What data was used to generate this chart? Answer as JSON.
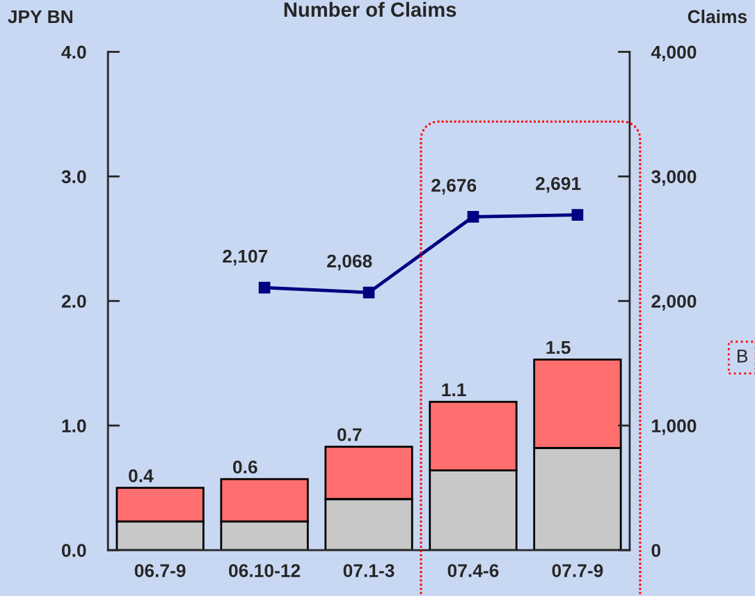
{
  "chart_data": {
    "type": "bar",
    "title": "Number of Claims",
    "ylabel": "JPY BN",
    "y2label": "Claims",
    "categories": [
      "06.7-9",
      "06.10-12",
      "07.1-3",
      "07.4-6",
      "07.7-9"
    ],
    "stacked": true,
    "series": [
      {
        "color": "#c8c8c8",
        "values": [
          0.23,
          0.23,
          0.41,
          0.64,
          0.82
        ]
      },
      {
        "color": "#ff6f6f",
        "values": [
          0.27,
          0.34,
          0.42,
          0.55,
          0.71
        ]
      },
      {
        "type": "line",
        "axis": "y2",
        "color": "#000080",
        "marker": "square",
        "values": [
          null,
          2107,
          2068,
          2676,
          2691
        ],
        "value_labels": [
          null,
          "2,107",
          "2,068",
          "2,676",
          "2,691"
        ]
      }
    ],
    "totals": [
      "0.4",
      "0.6",
      "0.7",
      "1.1",
      "1.5"
    ],
    "ylim": [
      0,
      4.0
    ],
    "yticks": [
      {
        "value": 0,
        "label": "0.0"
      },
      {
        "value": 1,
        "label": "1.0"
      },
      {
        "value": 2,
        "label": "2.0"
      },
      {
        "value": 3,
        "label": "3.0"
      },
      {
        "value": 4,
        "label": "4.0"
      }
    ],
    "y2lim": [
      0,
      4000
    ],
    "y2ticks": [
      0,
      {
        "value": 1000,
        "label": "1,000"
      },
      {
        "value": 2000,
        "label": "2,000"
      },
      {
        "value": 3000,
        "label": "3,000"
      },
      {
        "value": 4000,
        "label": "4,000"
      }
    ],
    "annotations": [
      "B"
    ],
    "legend": false,
    "grid": false
  }
}
